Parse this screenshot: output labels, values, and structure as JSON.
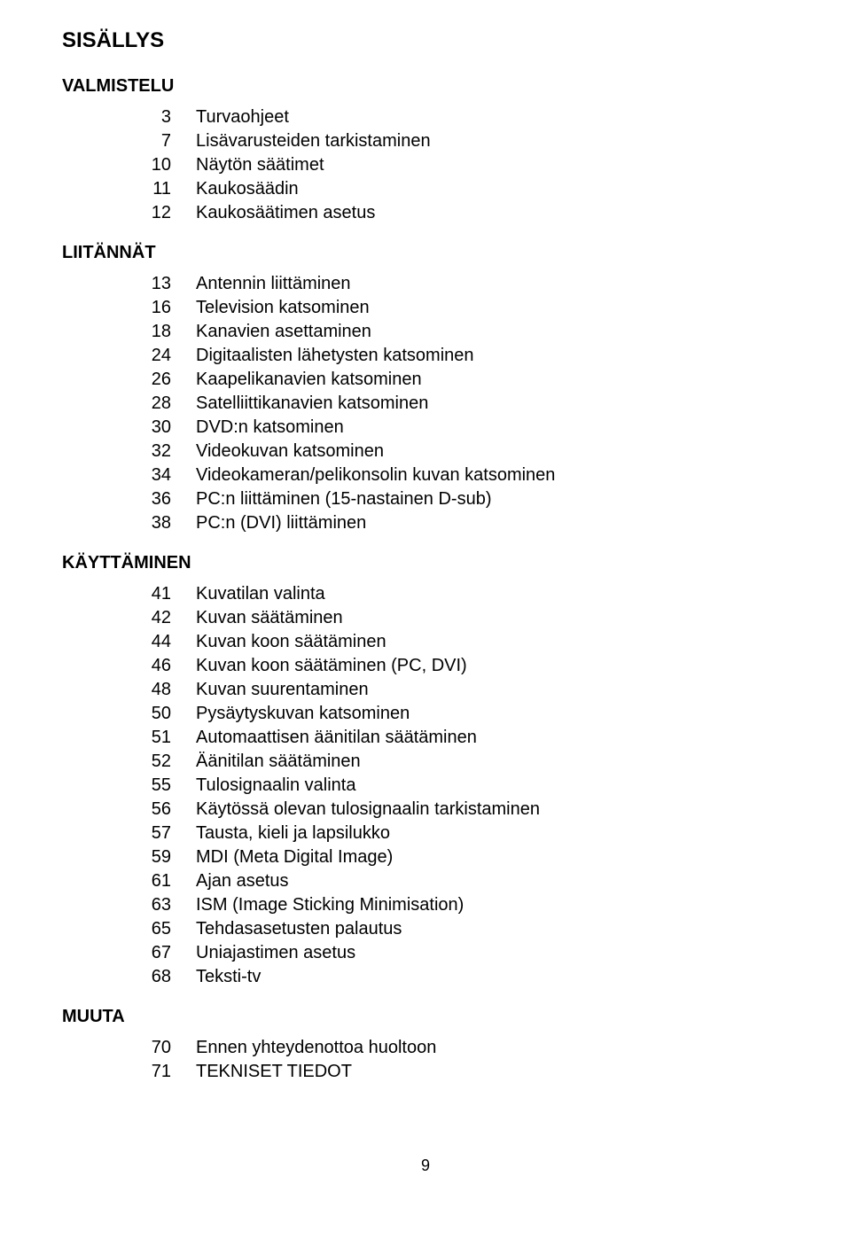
{
  "title": "SISÄLLYS",
  "sections": [
    {
      "heading": "VALMISTELU",
      "items": [
        {
          "n": "3",
          "t": "Turvaohjeet"
        },
        {
          "n": "7",
          "t": "Lisävarusteiden tarkistaminen"
        },
        {
          "n": "10",
          "t": "Näytön säätimet"
        },
        {
          "n": "11",
          "t": "Kaukosäädin"
        },
        {
          "n": "12",
          "t": "Kaukosäätimen asetus"
        }
      ]
    },
    {
      "heading": "LIITÄNNÄT",
      "items": [
        {
          "n": "13",
          "t": "Antennin liittäminen"
        },
        {
          "n": "16",
          "t": "Television katsominen"
        },
        {
          "n": "18",
          "t": "Kanavien asettaminen"
        },
        {
          "n": "24",
          "t": "Digitaalisten lähetysten katsominen"
        },
        {
          "n": "26",
          "t": "Kaapelikanavien katsominen"
        },
        {
          "n": "28",
          "t": "Satelliittikanavien katsominen"
        },
        {
          "n": "30",
          "t": "DVD:n katsominen"
        },
        {
          "n": "32",
          "t": "Videokuvan katsominen"
        },
        {
          "n": "34",
          "t": "Videokameran/pelikonsolin kuvan katsominen"
        },
        {
          "n": "36",
          "t": "PC:n liittäminen (15-nastainen D-sub)"
        },
        {
          "n": "38",
          "t": "PC:n (DVI) liittäminen"
        }
      ]
    },
    {
      "heading": "KÄYTTÄMINEN",
      "items": [
        {
          "n": "41",
          "t": "Kuvatilan valinta"
        },
        {
          "n": "42",
          "t": "Kuvan säätäminen"
        },
        {
          "n": "44",
          "t": "Kuvan koon säätäminen"
        },
        {
          "n": "46",
          "t": "Kuvan koon säätäminen (PC, DVI)"
        },
        {
          "n": "48",
          "t": "Kuvan suurentaminen"
        },
        {
          "n": "50",
          "t": "Pysäytyskuvan katsominen"
        },
        {
          "n": "51",
          "t": "Automaattisen äänitilan säätäminen"
        },
        {
          "n": "52",
          "t": "Äänitilan säätäminen"
        },
        {
          "n": "55",
          "t": "Tulosignaalin valinta"
        },
        {
          "n": "56",
          "t": "Käytössä olevan tulosignaalin tarkistaminen"
        },
        {
          "n": "57",
          "t": "Tausta, kieli ja lapsilukko"
        },
        {
          "n": "59",
          "t": "MDI (Meta Digital Image)"
        },
        {
          "n": "61",
          "t": "Ajan asetus"
        },
        {
          "n": "63",
          "t": "ISM (Image Sticking Minimisation)"
        },
        {
          "n": "65",
          "t": "Tehdasasetusten palautus"
        },
        {
          "n": "67",
          "t": "Uniajastimen asetus"
        },
        {
          "n": "68",
          "t": "Teksti-tv"
        }
      ]
    },
    {
      "heading": "MUUTA",
      "items": [
        {
          "n": "70",
          "t": "Ennen yhteydenottoa huoltoon"
        },
        {
          "n": "71",
          "t": "TEKNISET TIEDOT"
        }
      ]
    }
  ],
  "page_number": "9",
  "colors": {
    "text": "#000000",
    "bg": "#ffffff"
  },
  "font_family": "Arial",
  "title_fontsize_pt": 18,
  "body_fontsize_pt": 15
}
